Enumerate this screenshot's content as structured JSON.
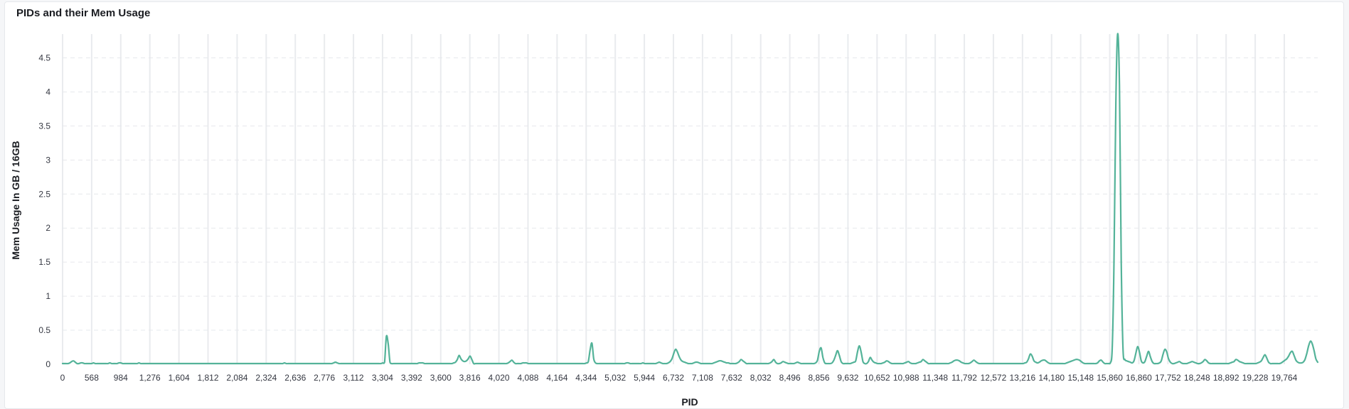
{
  "panel": {
    "title": "PIDs and their Mem Usage"
  },
  "chart_data": {
    "type": "line",
    "xlabel": "PID",
    "ylabel": "Mem Usage In GB / 16GB",
    "ylim": [
      0,
      4.85
    ],
    "y_ticks": [
      0,
      0.5,
      1,
      1.5,
      2,
      2.5,
      3,
      3.5,
      4,
      4.5
    ],
    "y_tick_labels": [
      "0",
      "0.5",
      "1",
      "1.5",
      "2",
      "2.5",
      "3",
      "3.5",
      "4",
      "4.5"
    ],
    "x_tick_labels": [
      "0",
      "568",
      "984",
      "1,276",
      "1,604",
      "1,812",
      "2,084",
      "2,324",
      "2,636",
      "2,776",
      "3,112",
      "3,304",
      "3,392",
      "3,600",
      "3,816",
      "4,020",
      "4,088",
      "4,164",
      "4,344",
      "5,032",
      "5,944",
      "6,732",
      "7,108",
      "7,632",
      "8,032",
      "8,496",
      "8,856",
      "9,632",
      "10,652",
      "10,988",
      "11,348",
      "11,792",
      "12,572",
      "13,216",
      "14,180",
      "15,148",
      "15,860",
      "16,860",
      "17,752",
      "18,248",
      "18,892",
      "19,228",
      "19,764"
    ],
    "grid": {
      "vertical": true,
      "horizontal_dashed": true
    },
    "line_color": "#54b399",
    "series": [
      {
        "values": [
          0.01,
          0.01,
          0.01,
          0.01,
          0.02,
          0.04,
          0.05,
          0.03,
          0.01,
          0.01,
          0.02,
          0.02,
          0.01,
          0.01,
          0.01,
          0.01,
          0.01,
          0.02,
          0.01,
          0.01,
          0.01,
          0.01,
          0.01,
          0.01,
          0.01,
          0.01,
          0.02,
          0.01,
          0.01,
          0.01,
          0.01,
          0.02,
          0.02,
          0.01,
          0.01,
          0.01,
          0.01,
          0.01,
          0.01,
          0.01,
          0.01,
          0.01,
          0.02,
          0.01,
          0.01,
          0.01,
          0.01,
          0.01,
          0.01,
          0.01,
          0.01,
          0.01,
          0.01,
          0.01,
          0.01,
          0.01,
          0.01,
          0.01,
          0.01,
          0.01,
          0.01,
          0.01,
          0.01,
          0.01,
          0.01,
          0.01,
          0.01,
          0.01,
          0.01,
          0.01,
          0.01,
          0.01,
          0.01,
          0.01,
          0.01,
          0.01,
          0.01,
          0.01,
          0.01,
          0.01,
          0.01,
          0.01,
          0.01,
          0.01,
          0.01,
          0.01,
          0.01,
          0.01,
          0.01,
          0.01,
          0.01,
          0.01,
          0.01,
          0.01,
          0.01,
          0.01,
          0.01,
          0.01,
          0.01,
          0.01,
          0.01,
          0.01,
          0.01,
          0.01,
          0.01,
          0.01,
          0.01,
          0.01,
          0.01,
          0.01,
          0.01,
          0.01,
          0.01,
          0.01,
          0.01,
          0.01,
          0.01,
          0.01,
          0.01,
          0.01,
          0.01,
          0.01,
          0.02,
          0.01,
          0.01,
          0.01,
          0.01,
          0.01,
          0.01,
          0.01,
          0.01,
          0.01,
          0.01,
          0.01,
          0.01,
          0.01,
          0.01,
          0.01,
          0.01,
          0.01,
          0.01,
          0.01,
          0.01,
          0.01,
          0.01,
          0.01,
          0.01,
          0.01,
          0.01,
          0.02,
          0.03,
          0.02,
          0.01,
          0.01,
          0.01,
          0.01,
          0.01,
          0.01,
          0.01,
          0.01,
          0.01,
          0.01,
          0.01,
          0.01,
          0.01,
          0.01,
          0.01,
          0.01,
          0.01,
          0.01,
          0.01,
          0.01,
          0.01,
          0.01,
          0.01,
          0.01,
          0.02,
          0.03,
          0.41,
          0.3,
          0.03,
          0.01,
          0.01,
          0.01,
          0.01,
          0.01,
          0.01,
          0.01,
          0.01,
          0.01,
          0.01,
          0.01,
          0.01,
          0.01,
          0.01,
          0.01,
          0.02,
          0.02,
          0.02,
          0.01,
          0.01,
          0.01,
          0.01,
          0.01,
          0.01,
          0.01,
          0.01,
          0.01,
          0.01,
          0.01,
          0.01,
          0.01,
          0.01,
          0.01,
          0.01,
          0.02,
          0.03,
          0.07,
          0.13,
          0.08,
          0.05,
          0.04,
          0.05,
          0.08,
          0.12,
          0.07,
          0.01,
          0.01,
          0.01,
          0.01,
          0.01,
          0.01,
          0.01,
          0.01,
          0.01,
          0.01,
          0.01,
          0.01,
          0.01,
          0.01,
          0.01,
          0.01,
          0.01,
          0.01,
          0.01,
          0.02,
          0.04,
          0.06,
          0.03,
          0.01,
          0.01,
          0.01,
          0.01,
          0.02,
          0.02,
          0.02,
          0.01,
          0.01,
          0.01,
          0.01,
          0.01,
          0.01,
          0.01,
          0.01,
          0.01,
          0.01,
          0.01,
          0.01,
          0.01,
          0.01,
          0.01,
          0.01,
          0.01,
          0.01,
          0.01,
          0.01,
          0.01,
          0.01,
          0.01,
          0.01,
          0.01,
          0.01,
          0.01,
          0.01,
          0.01,
          0.01,
          0.01,
          0.01,
          0.02,
          0.04,
          0.21,
          0.31,
          0.08,
          0.02,
          0.01,
          0.01,
          0.01,
          0.01,
          0.01,
          0.01,
          0.01,
          0.01,
          0.01,
          0.01,
          0.01,
          0.01,
          0.01,
          0.01,
          0.01,
          0.01,
          0.02,
          0.02,
          0.01,
          0.01,
          0.01,
          0.01,
          0.01,
          0.01,
          0.01,
          0.02,
          0.01,
          0.01,
          0.01,
          0.01,
          0.01,
          0.01,
          0.01,
          0.02,
          0.03,
          0.02,
          0.01,
          0.01,
          0.01,
          0.02,
          0.04,
          0.08,
          0.16,
          0.22,
          0.18,
          0.11,
          0.06,
          0.04,
          0.03,
          0.02,
          0.01,
          0.01,
          0.01,
          0.02,
          0.03,
          0.03,
          0.02,
          0.01,
          0.01,
          0.01,
          0.01,
          0.01,
          0.01,
          0.01,
          0.02,
          0.03,
          0.04,
          0.05,
          0.05,
          0.04,
          0.03,
          0.02,
          0.02,
          0.01,
          0.01,
          0.01,
          0.01,
          0.02,
          0.04,
          0.07,
          0.05,
          0.03,
          0.01,
          0.01,
          0.01,
          0.01,
          0.01,
          0.01,
          0.01,
          0.01,
          0.01,
          0.01,
          0.01,
          0.01,
          0.01,
          0.02,
          0.04,
          0.07,
          0.03,
          0.01,
          0.01,
          0.02,
          0.04,
          0.03,
          0.02,
          0.01,
          0.01,
          0.01,
          0.01,
          0.02,
          0.03,
          0.02,
          0.01,
          0.01,
          0.01,
          0.01,
          0.01,
          0.01,
          0.01,
          0.01,
          0.02,
          0.06,
          0.19,
          0.24,
          0.1,
          0.02,
          0.01,
          0.01,
          0.01,
          0.02,
          0.06,
          0.13,
          0.2,
          0.13,
          0.04,
          0.01,
          0.01,
          0.01,
          0.01,
          0.01,
          0.02,
          0.03,
          0.05,
          0.18,
          0.27,
          0.18,
          0.04,
          0.01,
          0.01,
          0.04,
          0.1,
          0.06,
          0.03,
          0.02,
          0.01,
          0.01,
          0.01,
          0.02,
          0.03,
          0.05,
          0.04,
          0.02,
          0.01,
          0.01,
          0.01,
          0.01,
          0.01,
          0.01,
          0.01,
          0.02,
          0.03,
          0.04,
          0.02,
          0.01,
          0.01,
          0.01,
          0.02,
          0.03,
          0.04,
          0.07,
          0.05,
          0.03,
          0.01,
          0.01,
          0.01,
          0.01,
          0.01,
          0.01,
          0.01,
          0.01,
          0.01,
          0.01,
          0.01,
          0.01,
          0.02,
          0.03,
          0.05,
          0.06,
          0.06,
          0.05,
          0.03,
          0.02,
          0.01,
          0.01,
          0.01,
          0.02,
          0.04,
          0.06,
          0.04,
          0.02,
          0.01,
          0.01,
          0.01,
          0.01,
          0.01,
          0.01,
          0.01,
          0.01,
          0.01,
          0.01,
          0.01,
          0.01,
          0.01,
          0.01,
          0.01,
          0.01,
          0.01,
          0.01,
          0.01,
          0.01,
          0.01,
          0.01,
          0.01,
          0.01,
          0.01,
          0.02,
          0.03,
          0.08,
          0.15,
          0.12,
          0.05,
          0.03,
          0.02,
          0.03,
          0.05,
          0.06,
          0.06,
          0.04,
          0.02,
          0.01,
          0.01,
          0.01,
          0.01,
          0.01,
          0.01,
          0.01,
          0.01,
          0.01,
          0.02,
          0.03,
          0.04,
          0.05,
          0.06,
          0.07,
          0.07,
          0.06,
          0.04,
          0.02,
          0.01,
          0.01,
          0.01,
          0.01,
          0.01,
          0.01,
          0.01,
          0.02,
          0.05,
          0.06,
          0.03,
          0.01,
          0.01,
          0.01,
          0.02,
          0.2,
          1.5,
          3.8,
          4.85,
          4.1,
          1.5,
          0.2,
          0.07,
          0.05,
          0.04,
          0.03,
          0.02,
          0.05,
          0.16,
          0.26,
          0.18,
          0.05,
          0.02,
          0.04,
          0.12,
          0.19,
          0.11,
          0.04,
          0.01,
          0.01,
          0.01,
          0.02,
          0.05,
          0.15,
          0.22,
          0.18,
          0.08,
          0.03,
          0.01,
          0.01,
          0.02,
          0.03,
          0.04,
          0.02,
          0.01,
          0.01,
          0.01,
          0.02,
          0.03,
          0.04,
          0.03,
          0.02,
          0.01,
          0.01,
          0.02,
          0.04,
          0.07,
          0.05,
          0.02,
          0.01,
          0.01,
          0.01,
          0.01,
          0.01,
          0.01,
          0.01,
          0.01,
          0.01,
          0.01,
          0.01,
          0.02,
          0.03,
          0.04,
          0.07,
          0.06,
          0.04,
          0.03,
          0.02,
          0.01,
          0.01,
          0.01,
          0.01,
          0.01,
          0.01,
          0.01,
          0.02,
          0.03,
          0.05,
          0.1,
          0.14,
          0.09,
          0.03,
          0.01,
          0.01,
          0.01,
          0.01,
          0.01,
          0.01,
          0.02,
          0.04,
          0.06,
          0.08,
          0.12,
          0.17,
          0.19,
          0.13,
          0.06,
          0.03,
          0.02,
          0.02,
          0.03,
          0.07,
          0.16,
          0.27,
          0.34,
          0.3,
          0.2,
          0.08,
          0.03
        ]
      }
    ]
  }
}
